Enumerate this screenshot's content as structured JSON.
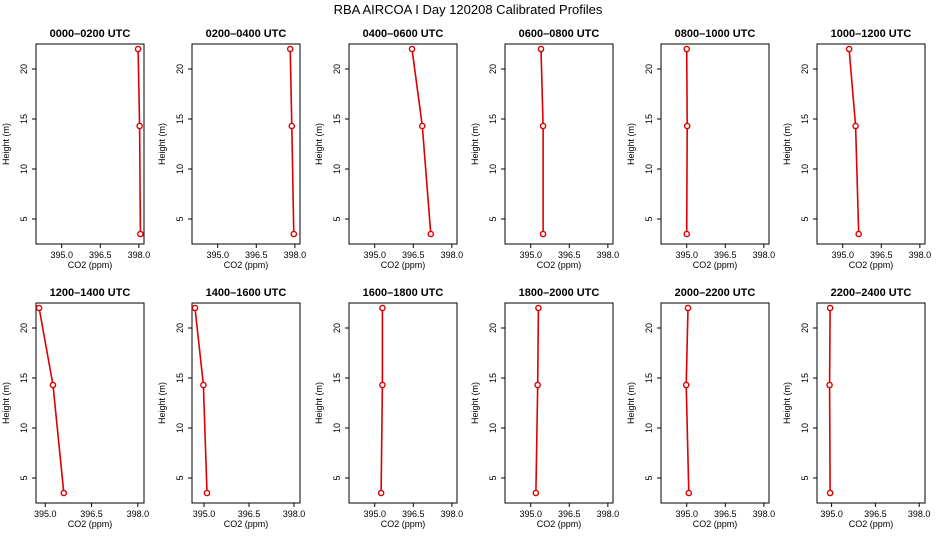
{
  "figure": {
    "title": "RBA AIRCOA I  Day 120208  Calibrated Profiles"
  },
  "colors": {
    "profile_line": "#dd0000",
    "axis": "#000000",
    "background": "#ffffff"
  },
  "chart_data": [
    {
      "type": "line",
      "title": "0000–0200 UTC",
      "xlabel": "CO2 (ppm)",
      "ylabel": "Height (m)",
      "xlim": [
        394.0,
        398.2
      ],
      "ylim": [
        2.5,
        22.5
      ],
      "xticks": [
        395.0,
        396.5,
        398.0
      ],
      "yticks": [
        5,
        10,
        15,
        20
      ],
      "grid": false,
      "series": [
        {
          "x": [
            397.97,
            398.03,
            398.06
          ],
          "y": [
            22.0,
            14.3,
            3.5
          ]
        }
      ]
    },
    {
      "type": "line",
      "title": "0200–0400 UTC",
      "xlabel": "CO2 (ppm)",
      "ylabel": "Height (m)",
      "xlim": [
        394.0,
        398.2
      ],
      "ylim": [
        2.5,
        22.5
      ],
      "xticks": [
        395.0,
        396.5,
        398.0
      ],
      "yticks": [
        5,
        10,
        15,
        20
      ],
      "grid": false,
      "series": [
        {
          "x": [
            397.82,
            397.88,
            397.96
          ],
          "y": [
            22.0,
            14.3,
            3.5
          ]
        }
      ]
    },
    {
      "type": "line",
      "title": "0400–0600 UTC",
      "xlabel": "CO2 (ppm)",
      "ylabel": "Height (m)",
      "xlim": [
        394.0,
        398.2
      ],
      "ylim": [
        2.5,
        22.5
      ],
      "xticks": [
        395.0,
        396.5,
        398.0
      ],
      "yticks": [
        5,
        10,
        15,
        20
      ],
      "grid": false,
      "series": [
        {
          "x": [
            396.45,
            396.85,
            397.18
          ],
          "y": [
            22.0,
            14.3,
            3.5
          ]
        }
      ]
    },
    {
      "type": "line",
      "title": "0600–0800 UTC",
      "xlabel": "CO2 (ppm)",
      "ylabel": "Height (m)",
      "xlim": [
        394.0,
        398.2
      ],
      "ylim": [
        2.5,
        22.5
      ],
      "xticks": [
        395.0,
        396.5,
        398.0
      ],
      "yticks": [
        5,
        10,
        15,
        20
      ],
      "grid": false,
      "series": [
        {
          "x": [
            395.4,
            395.48,
            395.48
          ],
          "y": [
            22.0,
            14.3,
            3.5
          ]
        }
      ]
    },
    {
      "type": "line",
      "title": "0800–1000 UTC",
      "xlabel": "CO2 (ppm)",
      "ylabel": "Height (m)",
      "xlim": [
        394.0,
        398.2
      ],
      "ylim": [
        2.5,
        22.5
      ],
      "xticks": [
        395.0,
        396.5,
        398.0
      ],
      "yticks": [
        5,
        10,
        15,
        20
      ],
      "grid": false,
      "series": [
        {
          "x": [
            395.0,
            395.02,
            395.0
          ],
          "y": [
            22.0,
            14.3,
            3.5
          ]
        }
      ]
    },
    {
      "type": "line",
      "title": "1000–1200 UTC",
      "xlabel": "CO2 (ppm)",
      "ylabel": "Height (m)",
      "xlim": [
        394.0,
        398.2
      ],
      "ylim": [
        2.5,
        22.5
      ],
      "xticks": [
        395.0,
        396.5,
        398.0
      ],
      "yticks": [
        5,
        10,
        15,
        20
      ],
      "grid": false,
      "series": [
        {
          "x": [
            395.25,
            395.5,
            395.62
          ],
          "y": [
            22.0,
            14.3,
            3.5
          ]
        }
      ]
    },
    {
      "type": "line",
      "title": "1200–1400 UTC",
      "xlabel": "CO2 (ppm)",
      "ylabel": "Height (m)",
      "xlim": [
        394.7,
        398.2
      ],
      "ylim": [
        2.5,
        22.5
      ],
      "xticks": [
        395.0,
        396.5,
        398.0
      ],
      "yticks": [
        5,
        10,
        15,
        20
      ],
      "grid": false,
      "series": [
        {
          "x": [
            394.8,
            395.25,
            395.6
          ],
          "y": [
            22.0,
            14.3,
            3.5
          ]
        }
      ]
    },
    {
      "type": "line",
      "title": "1400–1600 UTC",
      "xlabel": "CO2 (ppm)",
      "ylabel": "Height (m)",
      "xlim": [
        394.6,
        398.2
      ],
      "ylim": [
        2.5,
        22.5
      ],
      "xticks": [
        395.0,
        396.5,
        398.0
      ],
      "yticks": [
        5,
        10,
        15,
        20
      ],
      "grid": false,
      "series": [
        {
          "x": [
            394.7,
            394.98,
            395.1
          ],
          "y": [
            22.0,
            14.3,
            3.5
          ]
        }
      ]
    },
    {
      "type": "line",
      "title": "1600–1800 UTC",
      "xlabel": "CO2 (ppm)",
      "ylabel": "Height (m)",
      "xlim": [
        394.0,
        398.2
      ],
      "ylim": [
        2.5,
        22.5
      ],
      "xticks": [
        395.0,
        396.5,
        398.0
      ],
      "yticks": [
        5,
        10,
        15,
        20
      ],
      "grid": false,
      "series": [
        {
          "x": [
            395.3,
            395.3,
            395.25
          ],
          "y": [
            22.0,
            14.3,
            3.5
          ]
        }
      ]
    },
    {
      "type": "line",
      "title": "1800–2000 UTC",
      "xlabel": "CO2 (ppm)",
      "ylabel": "Height (m)",
      "xlim": [
        394.0,
        398.2
      ],
      "ylim": [
        2.5,
        22.5
      ],
      "xticks": [
        395.0,
        396.5,
        398.0
      ],
      "yticks": [
        5,
        10,
        15,
        20
      ],
      "grid": false,
      "series": [
        {
          "x": [
            395.3,
            395.27,
            395.2
          ],
          "y": [
            22.0,
            14.3,
            3.5
          ]
        }
      ]
    },
    {
      "type": "line",
      "title": "2000–2200 UTC",
      "xlabel": "CO2 (ppm)",
      "ylabel": "Height (m)",
      "xlim": [
        394.0,
        398.2
      ],
      "ylim": [
        2.5,
        22.5
      ],
      "xticks": [
        395.0,
        396.5,
        398.0
      ],
      "yticks": [
        5,
        10,
        15,
        20
      ],
      "grid": false,
      "series": [
        {
          "x": [
            395.05,
            394.98,
            395.08
          ],
          "y": [
            22.0,
            14.3,
            3.5
          ]
        }
      ]
    },
    {
      "type": "line",
      "title": "2200–2400 UTC",
      "xlabel": "CO2 (ppm)",
      "ylabel": "Height (m)",
      "xlim": [
        394.5,
        398.2
      ],
      "ylim": [
        2.5,
        22.5
      ],
      "xticks": [
        395.0,
        396.5,
        398.0
      ],
      "yticks": [
        5,
        10,
        15,
        20
      ],
      "grid": false,
      "series": [
        {
          "x": [
            394.95,
            394.93,
            394.95
          ],
          "y": [
            22.0,
            14.3,
            3.5
          ]
        }
      ]
    }
  ]
}
